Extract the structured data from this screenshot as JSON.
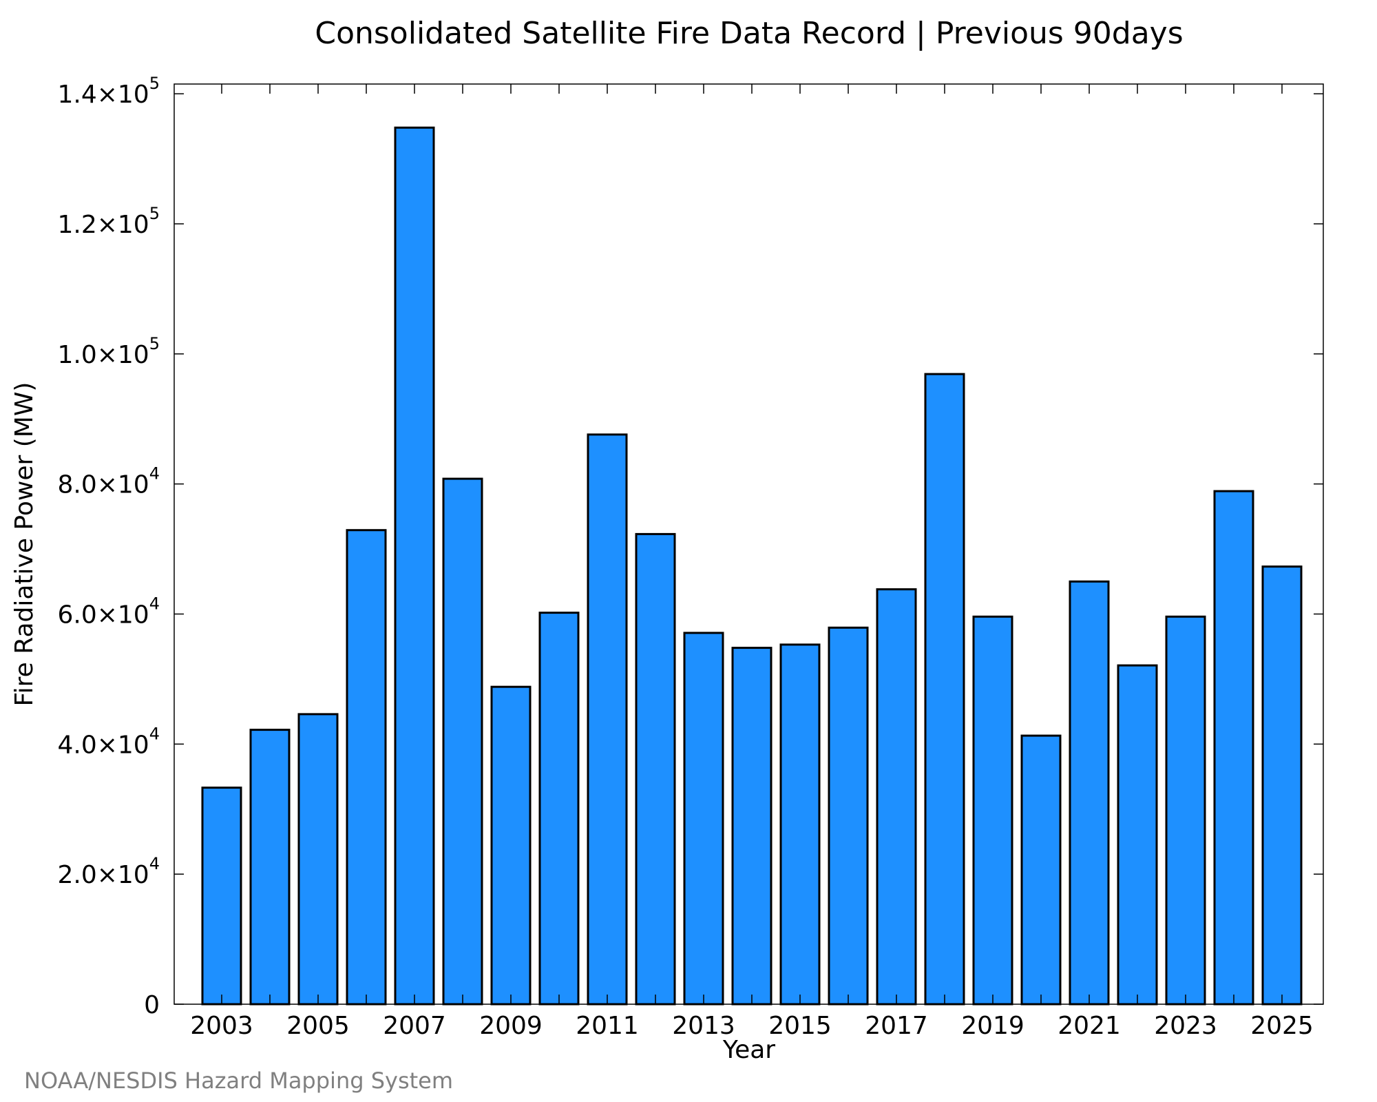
{
  "chart_data": {
    "type": "bar",
    "title": "Consolidated Satellite Fire Data Record | Previous 90days",
    "xlabel": "Year",
    "ylabel": "Fire Radiative Power (MW)",
    "categories": [
      "2003",
      "2004",
      "2005",
      "2006",
      "2007",
      "2008",
      "2009",
      "2010",
      "2011",
      "2012",
      "2013",
      "2014",
      "2015",
      "2016",
      "2017",
      "2018",
      "2019",
      "2020",
      "2021",
      "2022",
      "2023",
      "2024",
      "2025"
    ],
    "values": [
      33300,
      42200,
      44600,
      72900,
      134800,
      80800,
      48800,
      60200,
      87600,
      72300,
      57100,
      54800,
      55300,
      57900,
      63800,
      96900,
      59600,
      41300,
      65000,
      52100,
      59600,
      78900,
      67300
    ],
    "ylim": [
      0,
      141500
    ],
    "yticks": [
      {
        "value": 0,
        "mantissa": "0",
        "exponent": ""
      },
      {
        "value": 20000,
        "mantissa": "2.0×10",
        "exponent": "4"
      },
      {
        "value": 40000,
        "mantissa": "4.0×10",
        "exponent": "4"
      },
      {
        "value": 60000,
        "mantissa": "6.0×10",
        "exponent": "4"
      },
      {
        "value": 80000,
        "mantissa": "8.0×10",
        "exponent": "4"
      },
      {
        "value": 100000,
        "mantissa": "1.0×10",
        "exponent": "5"
      },
      {
        "value": 120000,
        "mantissa": "1.2×10",
        "exponent": "5"
      },
      {
        "value": 140000,
        "mantissa": "1.4×10",
        "exponent": "5"
      }
    ],
    "xtick_labels": [
      "2003",
      "2005",
      "2007",
      "2009",
      "2011",
      "2013",
      "2015",
      "2017",
      "2019",
      "2021",
      "2023",
      "2025"
    ],
    "bar_color": "#1E90FF",
    "grid": false,
    "legend": "none"
  },
  "footer": {
    "credit": "NOAA/NESDIS Hazard Mapping System"
  }
}
